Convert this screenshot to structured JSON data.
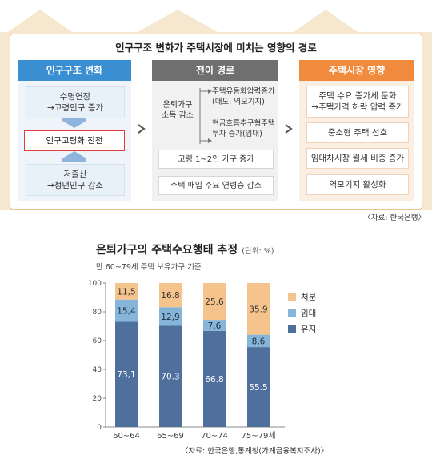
{
  "diagram": {
    "title": "인구구조 변화가 주택시장에 미치는 영향의 경로",
    "col1": {
      "title": "인구구조 변화",
      "top": "수명연장\n→고령인구 증가",
      "middle": "인구고령화 진전",
      "bottom": "저출산\n→청년인구 감소"
    },
    "col2": {
      "title": "전이 경로",
      "left_label": "은퇴가구\n소득 감소",
      "branch1": "주택유동화압력증가\n(매도, 역모기지)",
      "branch2": "현금흐름추구형주택\n투자 증가(임대)",
      "item3": "고령 1~2인 가구 증가",
      "item4": "주택 매입 주요 연령층 감소"
    },
    "col3": {
      "title": "주택시장 영향",
      "items": [
        "주택 수요 증가세 둔화\n→주택가격 하락 압력 증가",
        "중소형 주택 선호",
        "임대차시장 월세 비중 증가",
        "역모기지 활성화"
      ]
    },
    "source": "〈자료: 한국은행〉"
  },
  "chart_title": "은퇴가구의 주택수요행태 추정",
  "chart_unit": "(단위: %)",
  "chart_subtitle": "만 60~79세 주택 보유가구 기준",
  "chart_source": "〈자료: 한국은행,통계청(가계금융복지조사)〉",
  "colors": {
    "band": "#f6e7cf",
    "border": "#e6c48e",
    "blue_header": "#3a8fd2",
    "gray_header": "#6f6f6f",
    "orange_header": "#f08a3c",
    "red_box": "#e23b3b",
    "chart_yuji": "#4f6f9c",
    "chart_imdae": "#85b6d9",
    "chart_cheobun": "#f5c48c"
  },
  "chart_data": {
    "type": "bar",
    "stacked": true,
    "categories": [
      "60~64",
      "65~69",
      "70~74",
      "75~79세"
    ],
    "series": [
      {
        "name": "유지",
        "values": [
          73.1,
          70.3,
          66.8,
          55.5
        ]
      },
      {
        "name": "임대",
        "values": [
          15.4,
          12.9,
          7.6,
          8.6
        ]
      },
      {
        "name": "처분",
        "values": [
          11.5,
          16.8,
          25.6,
          35.9
        ]
      }
    ],
    "value_labels": [
      [
        "73,1",
        "70.3",
        "66.8",
        "55.5"
      ],
      [
        "15,4",
        "12,9",
        "7.6",
        "8,6"
      ],
      [
        "11,5",
        "16.8",
        "25.6",
        "35.9"
      ]
    ],
    "yticks": [
      0,
      20,
      40,
      60,
      80,
      100
    ],
    "ylim": [
      0,
      100
    ],
    "legend": [
      "처분",
      "임대",
      "유지"
    ],
    "legend_position": "right"
  }
}
